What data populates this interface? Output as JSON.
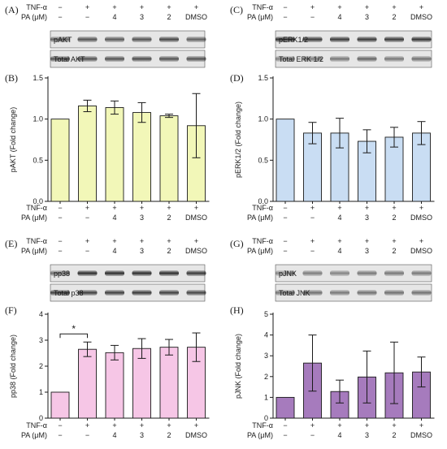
{
  "colors": {
    "akt": "#f2f7b8",
    "erk": "#c9ddf3",
    "p38": "#f6c6e6",
    "jnk": "#a67bbd"
  },
  "conditions": {
    "tnf_label": "TNF-α",
    "pa_label": "PA (μM)",
    "tnf": [
      "−",
      "+",
      "+",
      "+",
      "+",
      "+"
    ],
    "pa": [
      "−",
      "−",
      "4",
      "3",
      "2",
      "DMSO"
    ]
  },
  "blots": [
    {
      "id": "A",
      "letter": "(A)",
      "rows": [
        "pAKT",
        "Total AKT"
      ],
      "color": "akt"
    },
    {
      "id": "C",
      "letter": "(C)",
      "rows": [
        "pERK1/2",
        "Total ERK 1/2"
      ],
      "color": "erk"
    },
    {
      "id": "E",
      "letter": "(E)",
      "rows": [
        "pp38",
        "Total p38"
      ],
      "color": "p38"
    },
    {
      "id": "G",
      "letter": "(G)",
      "rows": [
        "pJNK",
        "Total JNK"
      ],
      "color": "jnk"
    }
  ],
  "chart_data": [
    {
      "id": "B",
      "letter": "(B)",
      "type": "bar",
      "ylabel": "pAKT (Fold change)",
      "ylim": [
        0,
        1.5
      ],
      "yticks": [
        0,
        0.5,
        1.0,
        1.5
      ],
      "ytick_labels": [
        "0.0",
        "0.5",
        "1.0",
        "1.5"
      ],
      "values": [
        1.0,
        1.16,
        1.14,
        1.08,
        1.04,
        0.92
      ],
      "errors": [
        0,
        0.07,
        0.08,
        0.12,
        0.02,
        0.39
      ],
      "color": "akt"
    },
    {
      "id": "D",
      "letter": "(D)",
      "type": "bar",
      "ylabel": "pERK1/2 (Fold change)",
      "ylim": [
        0,
        1.5
      ],
      "yticks": [
        0,
        0.5,
        1.0,
        1.5
      ],
      "ytick_labels": [
        "0.0",
        "0.5",
        "1.0",
        "1.5"
      ],
      "values": [
        1.0,
        0.83,
        0.83,
        0.73,
        0.78,
        0.83
      ],
      "errors": [
        0,
        0.13,
        0.18,
        0.14,
        0.12,
        0.14
      ],
      "color": "erk"
    },
    {
      "id": "F",
      "letter": "(F)",
      "type": "bar",
      "ylabel": "pp38 (Fold change)",
      "ylim": [
        0,
        4
      ],
      "yticks": [
        0,
        1,
        2,
        3,
        4
      ],
      "ytick_labels": [
        "0",
        "1",
        "2",
        "3",
        "4"
      ],
      "values": [
        1.0,
        2.65,
        2.52,
        2.68,
        2.73,
        2.73
      ],
      "errors": [
        0,
        0.28,
        0.28,
        0.38,
        0.3,
        0.55
      ],
      "color": "p38",
      "significance": {
        "from": 0,
        "to": 1,
        "label": "*"
      }
    },
    {
      "id": "H",
      "letter": "(H)",
      "type": "bar",
      "ylabel": "pJNK (Fold change)",
      "ylim": [
        0,
        5
      ],
      "yticks": [
        0,
        1,
        2,
        3,
        4,
        5
      ],
      "ytick_labels": [
        "0",
        "1",
        "2",
        "3",
        "4",
        "5"
      ],
      "values": [
        1.0,
        2.65,
        1.28,
        1.98,
        2.18,
        2.22
      ],
      "errors": [
        0,
        1.35,
        0.55,
        1.25,
        1.48,
        0.72
      ],
      "color": "jnk"
    }
  ]
}
